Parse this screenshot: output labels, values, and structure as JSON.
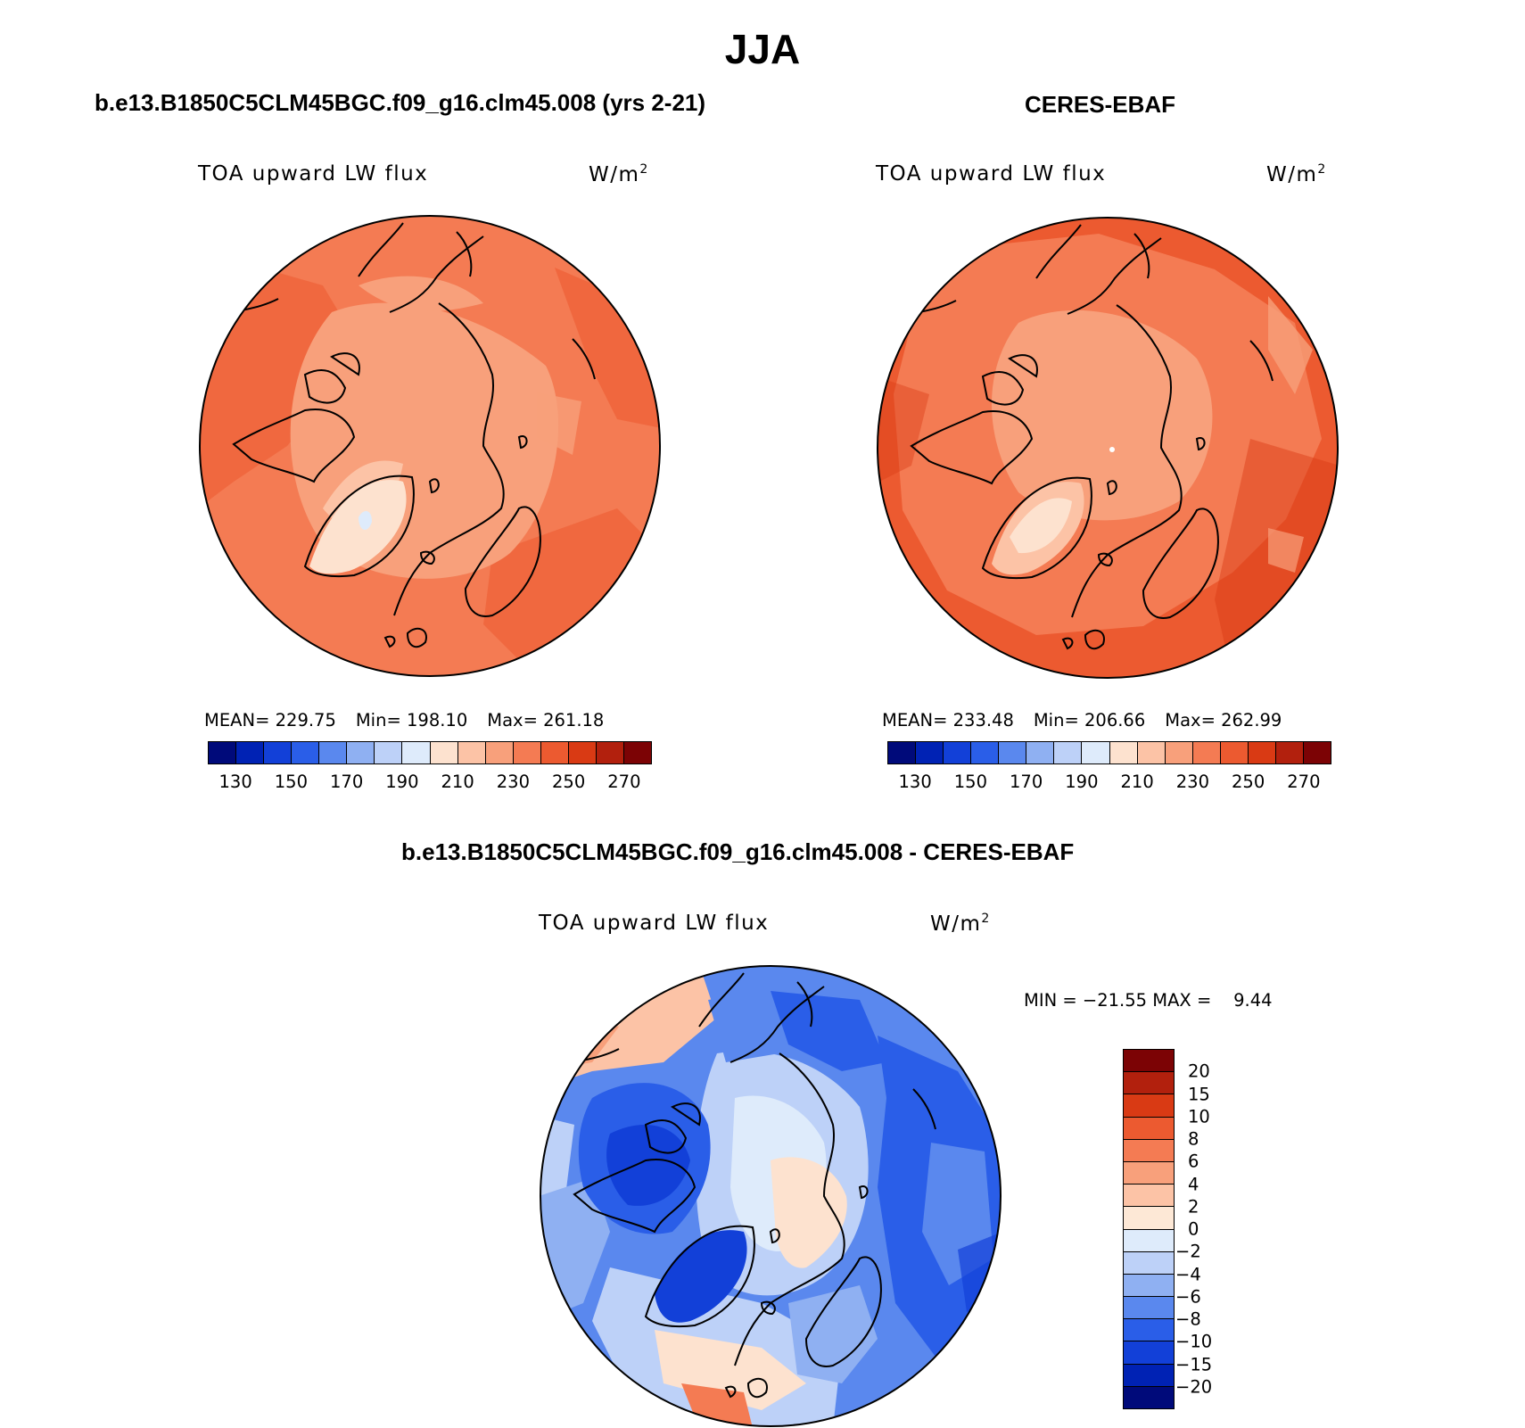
{
  "main_title": "JJA",
  "panels": [
    {
      "title": "b.e13.B1850C5CLM45BGC.f09_g16.clm45.008 (yrs 2-21)",
      "variable": "TOA upward LW flux",
      "units": "W/m",
      "units_sup": "2",
      "mean_label": "MEAN=",
      "mean": "229.75",
      "min_label": "Min=",
      "min": "198.10",
      "max_label": "Max=",
      "max": "261.18"
    },
    {
      "title": "CERES-EBAF",
      "variable": "TOA upward LW flux",
      "units": "W/m",
      "units_sup": "2",
      "mean_label": "MEAN=",
      "mean": "233.48",
      "min_label": "Min=",
      "min": "206.66",
      "max_label": "Max=",
      "max": "262.99"
    },
    {
      "title": "b.e13.B1850C5CLM45BGC.f09_g16.clm45.008 - CERES-EBAF",
      "variable": "TOA upward LW flux",
      "units": "W/m",
      "units_sup": "2",
      "minmax_text": "MIN = −21.55 MAX =    9.44"
    }
  ],
  "abs_colorbar": {
    "colors": [
      "#000a7a",
      "#0022b4",
      "#1240d8",
      "#2a5ee8",
      "#5a88ee",
      "#8fb0f2",
      "#bdd1f8",
      "#deebfb",
      "#fde2cf",
      "#fcc3a6",
      "#f8a07b",
      "#f47b53",
      "#ec5a30",
      "#d93a14",
      "#b2200d",
      "#7c0305"
    ],
    "tick_labels": [
      "130",
      "150",
      "170",
      "190",
      "210",
      "230",
      "250",
      "270"
    ]
  },
  "diff_colorbar": {
    "colors_top_to_bottom": [
      "#7c0305",
      "#b2200d",
      "#d93a14",
      "#ec5a30",
      "#f47b53",
      "#f8a07b",
      "#fcc3a6",
      "#fde8d6",
      "#deebfb",
      "#bdd1f8",
      "#8fb0f2",
      "#5a88ee",
      "#2a5ee8",
      "#1240d8",
      "#0022b4",
      "#000a7a"
    ],
    "tick_labels": [
      "20",
      "15",
      "10",
      "8",
      "6",
      "4",
      "2",
      "0",
      "−2",
      "−4",
      "−6",
      "−8",
      "−10",
      "−15",
      "−20"
    ]
  }
}
